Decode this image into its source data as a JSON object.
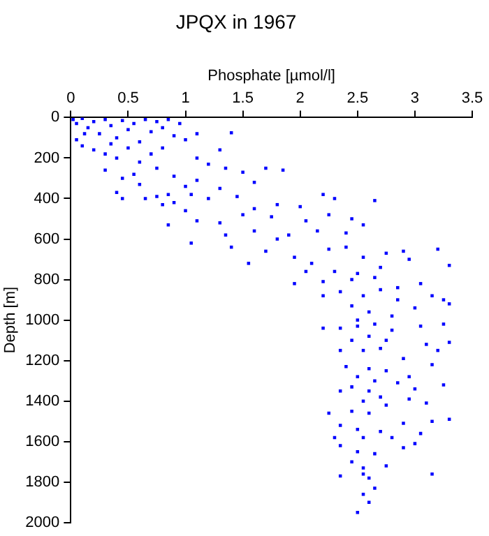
{
  "chart_data": {
    "type": "scatter",
    "title": "JPQX in 1967",
    "xlabel": "Phosphate [µmol/l]",
    "ylabel": "Depth [m]",
    "marker": "square",
    "grid": false,
    "legend": false,
    "xlim": [
      0,
      3.5
    ],
    "xticks": [
      0,
      0.5,
      1,
      1.5,
      2,
      2.5,
      3,
      3.5
    ],
    "ylim": [
      2000,
      0
    ],
    "yticks": [
      0,
      200,
      400,
      600,
      800,
      1000,
      1200,
      1400,
      1600,
      1800,
      2000
    ],
    "series": [
      {
        "color": "#0000ff",
        "x": [
          0.02,
          0.05,
          0.1,
          0.15,
          0.2,
          0.25,
          0.3,
          0.35,
          0.4,
          0.45,
          0.5,
          0.55,
          0.6,
          0.65,
          0.7,
          0.75,
          0.8,
          0.85,
          0.9,
          0.95,
          1.0,
          0.05,
          0.1,
          0.2,
          0.3,
          0.4,
          0.5,
          0.6,
          0.7,
          0.8,
          1.1,
          1.4,
          1.3,
          1.1,
          0.12,
          0.35,
          0.3,
          0.45,
          0.55,
          0.6,
          0.75,
          0.9,
          1.0,
          1.1,
          0.85,
          0.65,
          0.45,
          1.2,
          1.35,
          1.5,
          1.7,
          1.85,
          1.6,
          1.3,
          1.45,
          0.9,
          1.05,
          0.75,
          0.4,
          0.8,
          1.0,
          1.1,
          1.3,
          1.5,
          1.6,
          1.8,
          2.0,
          2.2,
          2.3,
          1.2,
          0.85,
          1.05,
          1.35,
          1.6,
          1.75,
          2.05,
          2.25,
          2.45,
          2.55,
          2.65,
          1.9,
          2.15,
          2.4,
          1.4,
          1.8,
          1.55,
          1.7,
          1.95,
          2.1,
          2.25,
          2.4,
          2.55,
          2.75,
          2.9,
          3.2,
          3.3,
          2.3,
          2.5,
          2.7,
          2.95,
          2.05,
          1.95,
          2.2,
          2.45,
          2.65,
          2.35,
          2.55,
          2.7,
          2.85,
          3.05,
          3.15,
          3.25,
          2.2,
          2.45,
          2.6,
          2.8,
          3.0,
          3.3,
          2.85,
          2.5,
          2.2,
          2.35,
          2.5,
          2.65,
          2.8,
          3.05,
          3.25,
          2.45,
          2.6,
          2.75,
          3.1,
          3.3,
          2.35,
          2.55,
          2.7,
          2.9,
          3.2,
          2.4,
          2.6,
          2.75,
          2.95,
          3.15,
          2.5,
          2.65,
          2.85,
          3.25,
          2.45,
          2.6,
          2.7,
          3.0,
          2.35,
          2.55,
          2.75,
          2.95,
          3.1,
          2.25,
          2.45,
          2.6,
          2.9,
          3.3,
          3.15,
          2.35,
          2.5,
          2.7,
          3.05,
          2.3,
          2.55,
          2.8,
          2.35,
          2.5,
          2.65,
          2.9,
          3.0,
          2.45,
          2.55,
          2.75,
          2.35,
          2.55,
          3.15,
          2.6,
          2.65,
          2.55,
          2.6,
          2.5
        ],
        "values": [
          10,
          30,
          5,
          50,
          20,
          80,
          10,
          40,
          100,
          15,
          60,
          30,
          120,
          10,
          70,
          20,
          50,
          10,
          90,
          30,
          110,
          110,
          140,
          160,
          180,
          200,
          150,
          220,
          180,
          150,
          80,
          75,
          160,
          200,
          80,
          130,
          260,
          300,
          280,
          330,
          250,
          290,
          340,
          310,
          380,
          400,
          400,
          230,
          250,
          270,
          250,
          260,
          320,
          350,
          390,
          420,
          380,
          390,
          370,
          430,
          460,
          510,
          520,
          480,
          450,
          430,
          440,
          380,
          400,
          400,
          530,
          620,
          580,
          560,
          490,
          510,
          480,
          500,
          530,
          410,
          580,
          560,
          570,
          640,
          600,
          720,
          660,
          690,
          720,
          650,
          640,
          690,
          670,
          660,
          650,
          730,
          760,
          770,
          740,
          700,
          760,
          820,
          810,
          800,
          790,
          860,
          880,
          850,
          840,
          820,
          880,
          900,
          880,
          930,
          960,
          980,
          940,
          920,
          900,
          1000,
          1040,
          1040,
          1030,
          1020,
          1050,
          1030,
          1020,
          1100,
          1080,
          1100,
          1120,
          1110,
          1150,
          1150,
          1140,
          1190,
          1150,
          1230,
          1240,
          1250,
          1280,
          1220,
          1280,
          1300,
          1310,
          1320,
          1330,
          1350,
          1380,
          1340,
          1350,
          1400,
          1420,
          1390,
          1410,
          1460,
          1450,
          1460,
          1510,
          1490,
          1500,
          1520,
          1540,
          1550,
          1560,
          1580,
          1580,
          1580,
          1620,
          1650,
          1660,
          1630,
          1610,
          1700,
          1730,
          1720,
          1770,
          1760,
          1760,
          1780,
          1830,
          1860,
          1900,
          1950
        ]
      }
    ]
  }
}
